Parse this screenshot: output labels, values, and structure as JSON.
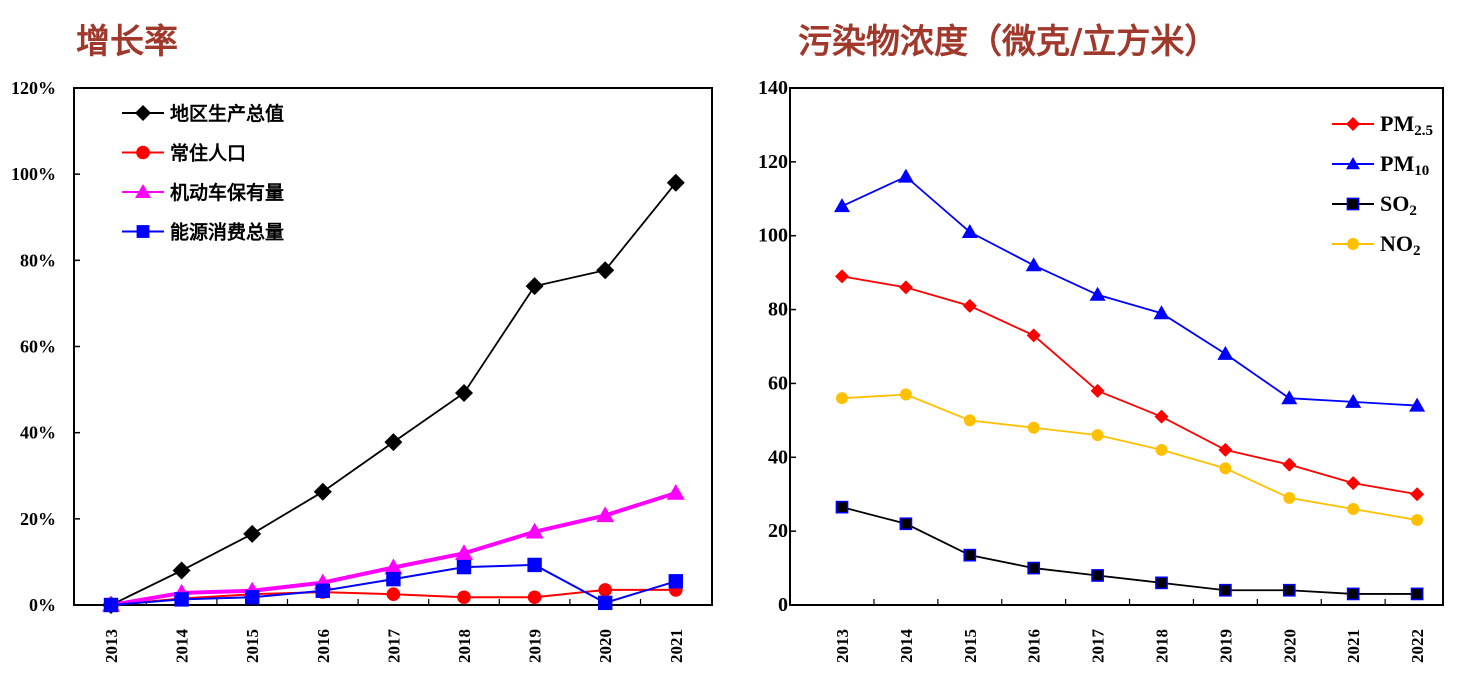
{
  "chart_data": [
    {
      "type": "line",
      "title": "增长率",
      "categories": [
        "2013",
        "2014",
        "2015",
        "2016",
        "2017",
        "2018",
        "2019",
        "2020",
        "2021"
      ],
      "ylim": [
        0,
        120
      ],
      "yticks": [
        "0%",
        "20%",
        "40%",
        "60%",
        "80%",
        "100%",
        "120%"
      ],
      "legend_placement": "top-left",
      "series": [
        {
          "name": "地区生产总值",
          "color": "#000000",
          "marker": "diamond",
          "values": [
            0,
            8,
            16.5,
            26.3,
            37.8,
            49.2,
            74,
            77.7,
            98
          ]
        },
        {
          "name": "常住人口",
          "color": "#ff0000",
          "marker": "circle",
          "values": [
            0,
            1.5,
            2.5,
            3,
            2.5,
            1.8,
            1.8,
            3.5,
            3.5
          ]
        },
        {
          "name": "机动车保有量",
          "color": "#ff00ff",
          "marker": "triangle",
          "values": [
            0,
            2.8,
            3.3,
            5.2,
            8.7,
            12,
            17,
            20.8,
            26
          ]
        },
        {
          "name": "能源消费总量",
          "color": "#0000ff",
          "marker": "square",
          "values": [
            0,
            1.3,
            1.8,
            3.3,
            6,
            8.8,
            9.3,
            0.5,
            5.5
          ]
        }
      ]
    },
    {
      "type": "line",
      "title": "污染物浓度（微克/立方米）",
      "categories": [
        "2013",
        "2014",
        "2015",
        "2016",
        "2017",
        "2018",
        "2019",
        "2020",
        "2021",
        "2022"
      ],
      "ylim": [
        0,
        140
      ],
      "yticks": [
        "0",
        "20",
        "40",
        "60",
        "80",
        "100",
        "120",
        "140"
      ],
      "legend_placement": "top-right",
      "series": [
        {
          "name": "PM",
          "sub": "2.5",
          "color": "#ff0000",
          "marker": "diamond",
          "values": [
            89,
            86,
            81,
            73,
            58,
            51,
            42,
            38,
            33,
            30
          ]
        },
        {
          "name": "PM",
          "sub": "10",
          "color": "#0000ff",
          "marker": "triangle",
          "values": [
            108,
            116,
            101,
            92,
            84,
            79,
            68,
            56,
            55,
            54
          ]
        },
        {
          "name": "SO",
          "sub": "2",
          "color": "#000000",
          "marker": "square",
          "values": [
            26.5,
            22,
            13.5,
            10,
            8,
            6,
            4,
            4,
            3,
            3
          ]
        },
        {
          "name": "NO",
          "sub": "2",
          "color": "#ffc000",
          "marker": "circle",
          "values": [
            56,
            57,
            50,
            48,
            46,
            42,
            37,
            29,
            26,
            23
          ]
        }
      ]
    }
  ]
}
